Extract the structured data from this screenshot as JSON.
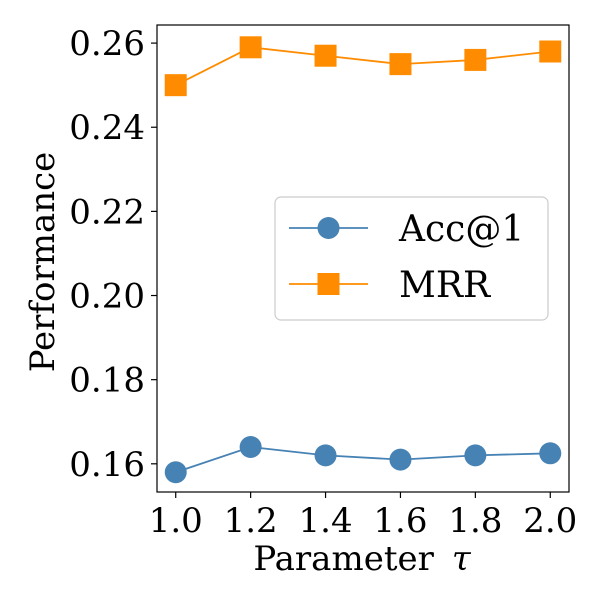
{
  "chart_data": {
    "type": "line",
    "title": "",
    "xlabel": "Parameter",
    "xlabel_symbol": "τ",
    "ylabel": "Performance",
    "x": [
      1.0,
      1.2,
      1.4,
      1.6,
      1.8,
      2.0
    ],
    "x_tick_labels": [
      "1.0",
      "1.2",
      "1.4",
      "1.6",
      "1.8",
      "2.0"
    ],
    "y_ticks": [
      0.16,
      0.18,
      0.2,
      0.22,
      0.24,
      0.26
    ],
    "y_tick_labels": [
      "0.16",
      "0.18",
      "0.20",
      "0.22",
      "0.24",
      "0.26"
    ],
    "xlim": [
      0.95,
      2.05
    ],
    "ylim": [
      0.1533,
      0.2643
    ],
    "grid": false,
    "legend_position": "center-right",
    "series": [
      {
        "name": "Acc@1",
        "marker": "circle",
        "color": "#4682b4",
        "values": [
          0.158,
          0.164,
          0.162,
          0.161,
          0.162,
          0.1625
        ]
      },
      {
        "name": "MRR",
        "marker": "square",
        "color": "#ff8c00",
        "values": [
          0.25,
          0.259,
          0.257,
          0.255,
          0.256,
          0.258
        ]
      }
    ]
  }
}
